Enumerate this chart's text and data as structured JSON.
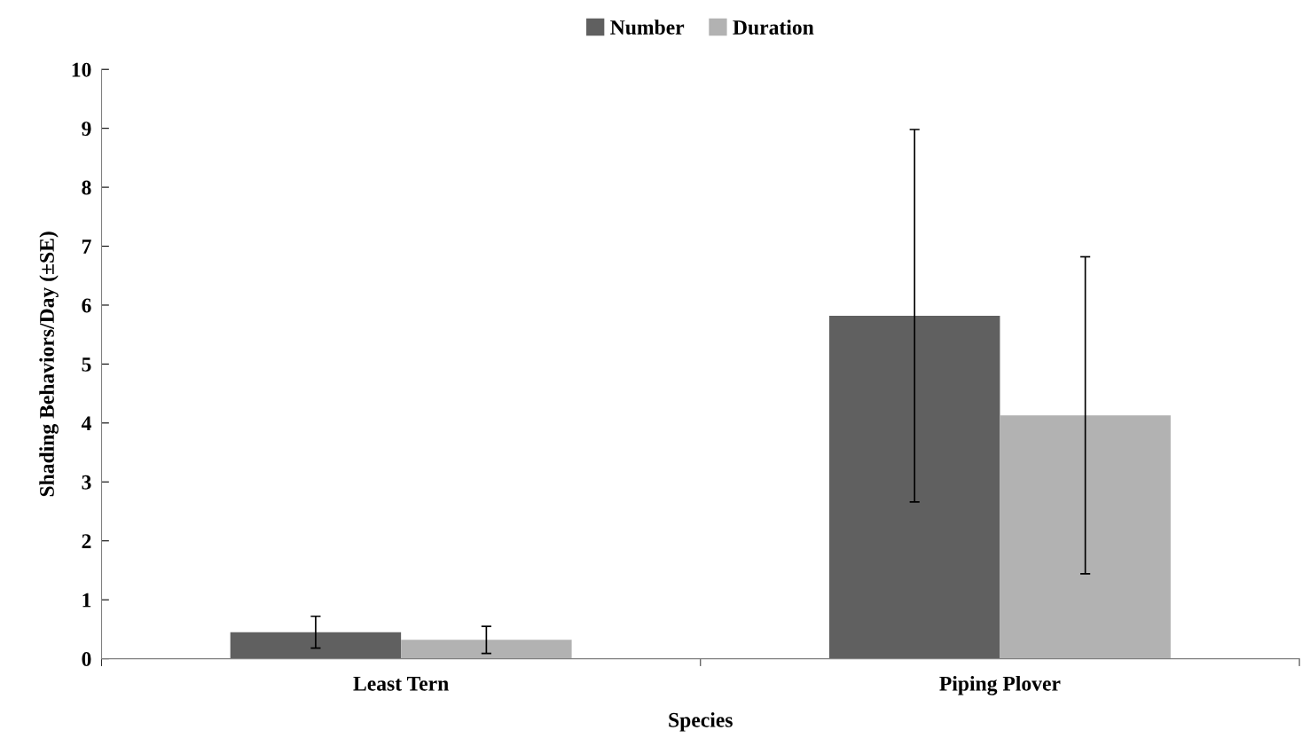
{
  "chart_data": {
    "type": "bar",
    "xlabel": "Species",
    "ylabel": "Shading Behaviors/Day (±SE)",
    "categories": [
      "Least Tern",
      "Piping Plover"
    ],
    "series": [
      {
        "name": "Number",
        "color": "#606060",
        "values": [
          0.45,
          5.82
        ],
        "errors": [
          0.27,
          3.16
        ]
      },
      {
        "name": "Duration",
        "color": "#b2b2b2",
        "values": [
          0.32,
          4.13
        ],
        "errors": [
          0.23,
          2.69
        ]
      }
    ],
    "ylim": [
      0,
      10
    ],
    "yticks": [
      0,
      1,
      2,
      3,
      4,
      5,
      6,
      7,
      8,
      9,
      10
    ],
    "grid": false,
    "legend": "top"
  }
}
